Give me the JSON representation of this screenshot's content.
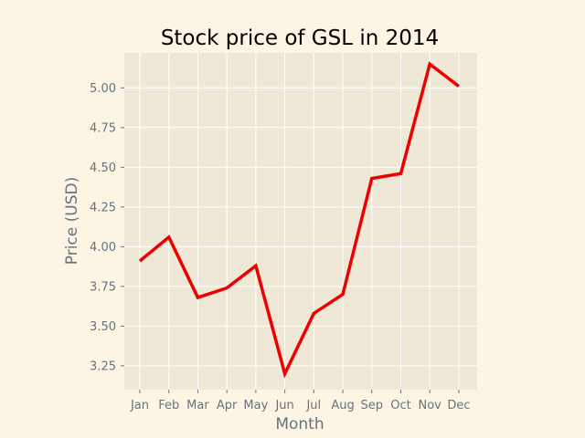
{
  "chart_data": {
    "type": "line",
    "title": "Stock price of GSL in 2014",
    "xlabel": "Month",
    "ylabel": "Price (USD)",
    "categories": [
      "Jan",
      "Feb",
      "Mar",
      "Apr",
      "May",
      "Jun",
      "Jul",
      "Aug",
      "Sep",
      "Oct",
      "Nov",
      "Dec"
    ],
    "series": [
      {
        "values": [
          3.91,
          4.06,
          3.68,
          3.74,
          3.88,
          3.2,
          3.58,
          3.7,
          4.43,
          4.46,
          5.15,
          5.01
        ],
        "color": "#ee0000"
      }
    ],
    "ylim": [
      3.1,
      5.22
    ],
    "yticks": [
      "3.25",
      "3.50",
      "3.75",
      "4.00",
      "4.25",
      "4.50",
      "4.75",
      "5.00"
    ],
    "grid": true,
    "style": {
      "figure_background": "#fcf5e3",
      "plot_background": "#efe8d6",
      "grid_color": "#ffffff",
      "tick_color": "#66737f"
    }
  }
}
